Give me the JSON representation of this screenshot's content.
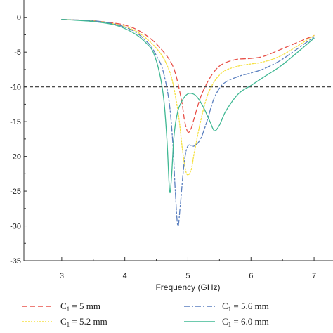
{
  "chart_data": {
    "type": "line",
    "title": "",
    "xlabel": "Frequency (GHz)",
    "ylabel": "",
    "xlim": [
      2.4,
      7.3
    ],
    "ylim": [
      -35,
      2.5
    ],
    "xticks": [
      3,
      4,
      5,
      6,
      7
    ],
    "yticks": [
      0,
      -5,
      -10,
      -15,
      -20,
      -25,
      -30,
      -35
    ],
    "grid": false,
    "legend_position": "bottom",
    "reference_line": {
      "y": -10,
      "style": "dashed",
      "color": "#333333"
    },
    "series": [
      {
        "name": "C1 = 5 mm",
        "label_base": "C",
        "label_sub": "1",
        "label_rest": " = 5 mm",
        "color": "#e8524a",
        "dash": "7,4",
        "x": [
          3.0,
          3.5,
          3.8,
          4.0,
          4.2,
          4.4,
          4.55,
          4.7,
          4.8,
          4.9,
          4.95,
          5.0,
          5.05,
          5.1,
          5.2,
          5.3,
          5.4,
          5.5,
          5.6,
          5.7,
          5.8,
          6.0,
          6.2,
          6.5,
          7.0
        ],
        "y": [
          -0.3,
          -0.5,
          -0.8,
          -1.1,
          -1.8,
          -3.0,
          -4.3,
          -6.0,
          -8.0,
          -12.0,
          -15.0,
          -16.5,
          -16.0,
          -14.5,
          -11.5,
          -9.5,
          -8.0,
          -7.0,
          -6.5,
          -6.2,
          -6.0,
          -5.9,
          -5.6,
          -4.5,
          -2.6
        ]
      },
      {
        "name": "C1 = 5.2 mm",
        "label_base": "C",
        "label_sub": "1",
        "label_rest": " = 5.2 mm",
        "color": "#f5e040",
        "dash": "2,2",
        "x": [
          3.0,
          3.5,
          3.8,
          4.0,
          4.2,
          4.4,
          4.55,
          4.65,
          4.75,
          4.85,
          4.92,
          4.98,
          5.05,
          5.1,
          5.2,
          5.3,
          5.4,
          5.5,
          5.6,
          5.8,
          6.0,
          6.2,
          6.5,
          7.0
        ],
        "y": [
          -0.3,
          -0.5,
          -0.9,
          -1.3,
          -2.1,
          -3.5,
          -5.0,
          -6.5,
          -9.0,
          -14.0,
          -19.5,
          -22.5,
          -22.0,
          -19.5,
          -15.0,
          -11.5,
          -9.5,
          -8.3,
          -7.6,
          -7.0,
          -6.7,
          -6.4,
          -5.4,
          -2.6
        ]
      },
      {
        "name": "C1 = 5.6 mm",
        "label_base": "C",
        "label_sub": "1",
        "label_rest": " = 5.6 mm",
        "color": "#5a7fbf",
        "dash": "8,3,2,3",
        "x": [
          3.0,
          3.5,
          3.8,
          4.0,
          4.2,
          4.4,
          4.5,
          4.6,
          4.7,
          4.76,
          4.8,
          4.84,
          4.88,
          4.94,
          5.0,
          5.1,
          5.2,
          5.3,
          5.4,
          5.5,
          5.6,
          5.8,
          6.0,
          6.2,
          6.5,
          7.0
        ],
        "y": [
          -0.3,
          -0.5,
          -0.9,
          -1.4,
          -2.3,
          -4.0,
          -5.5,
          -7.5,
          -12.0,
          -18.0,
          -25.0,
          -30.0,
          -27.0,
          -21.0,
          -18.5,
          -18.5,
          -17.5,
          -15.0,
          -12.0,
          -10.2,
          -9.3,
          -8.5,
          -8.0,
          -7.4,
          -6.0,
          -2.8
        ]
      },
      {
        "name": "C1 = 6.0 mm",
        "label_base": "C",
        "label_sub": "1",
        "label_rest": " = 6.0 mm",
        "color": "#3fb893",
        "dash": "",
        "x": [
          3.0,
          3.5,
          3.8,
          4.0,
          4.2,
          4.35,
          4.45,
          4.55,
          4.62,
          4.67,
          4.71,
          4.74,
          4.78,
          4.84,
          4.92,
          5.0,
          5.08,
          5.15,
          5.25,
          5.35,
          5.42,
          5.5,
          5.6,
          5.8,
          6.0,
          6.2,
          6.5,
          7.0
        ],
        "y": [
          -0.3,
          -0.6,
          -1.0,
          -1.6,
          -2.6,
          -3.8,
          -5.0,
          -8.0,
          -12.0,
          -18.0,
          -25.0,
          -23.0,
          -17.0,
          -13.5,
          -11.8,
          -11.0,
          -11.0,
          -11.5,
          -13.0,
          -15.0,
          -16.3,
          -15.5,
          -13.5,
          -11.0,
          -9.8,
          -8.6,
          -6.8,
          -3.0
        ]
      }
    ]
  }
}
